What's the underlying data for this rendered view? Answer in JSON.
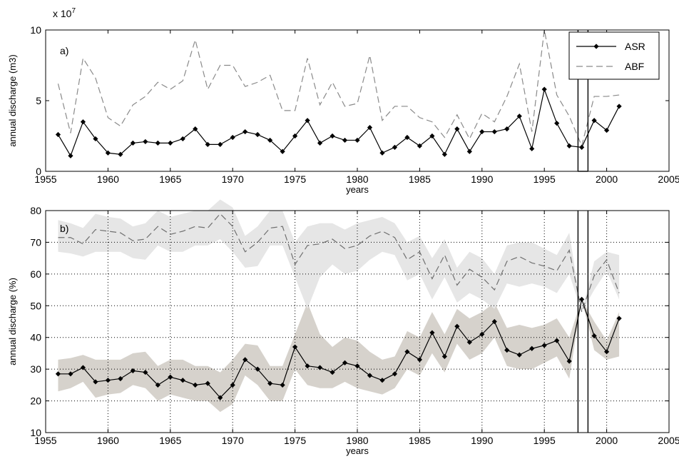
{
  "chart_data": [
    {
      "type": "line",
      "panel_label": "a)",
      "xlabel": "years",
      "ylabel": "annual discharge (m3)",
      "y_multiplier_label": "x 10",
      "y_multiplier_exponent": "7",
      "xlim": [
        1955,
        2005
      ],
      "ylim": [
        0,
        10
      ],
      "xticks": [
        1955,
        1960,
        1965,
        1970,
        1975,
        1980,
        1985,
        1990,
        1995,
        2000,
        2005
      ],
      "yticks": [
        0,
        5,
        10
      ],
      "grid": false,
      "legend_position": "top-right",
      "highlight_range": [
        1997.7,
        1998.5
      ],
      "x": [
        1956,
        1957,
        1958,
        1959,
        1960,
        1961,
        1962,
        1963,
        1964,
        1965,
        1966,
        1967,
        1968,
        1969,
        1970,
        1971,
        1972,
        1973,
        1974,
        1975,
        1976,
        1977,
        1978,
        1979,
        1980,
        1981,
        1982,
        1983,
        1984,
        1985,
        1986,
        1987,
        1988,
        1989,
        1990,
        1991,
        1992,
        1993,
        1994,
        1995,
        1996,
        1997,
        1998,
        1999,
        2000,
        2001
      ],
      "series": [
        {
          "name": "ASR",
          "color": "#000000",
          "style": "solid-diamond",
          "values": [
            2.6,
            1.1,
            3.5,
            2.3,
            1.3,
            1.2,
            2.0,
            2.1,
            2.0,
            2.0,
            2.3,
            3.0,
            1.9,
            1.9,
            2.4,
            2.8,
            2.6,
            2.2,
            1.4,
            2.5,
            3.6,
            2.0,
            2.5,
            2.2,
            2.2,
            3.1,
            1.3,
            1.7,
            2.4,
            1.8,
            2.5,
            1.2,
            3.0,
            1.4,
            2.8,
            2.8,
            3.0,
            3.9,
            1.6,
            5.8,
            3.4,
            1.8,
            1.7,
            3.6,
            2.9,
            4.6
          ]
        },
        {
          "name": "ABF",
          "color": "#8a8a8a",
          "style": "dashed",
          "values": [
            6.2,
            2.7,
            8.0,
            6.6,
            3.8,
            3.2,
            4.7,
            5.3,
            6.3,
            5.8,
            6.4,
            9.3,
            5.8,
            7.5,
            7.5,
            6.0,
            6.3,
            6.8,
            4.3,
            4.3,
            8.0,
            4.7,
            6.3,
            4.6,
            4.8,
            8.2,
            3.6,
            4.6,
            4.6,
            3.8,
            3.5,
            2.4,
            4.0,
            2.3,
            4.1,
            3.5,
            5.3,
            7.6,
            2.8,
            10.0,
            5.4,
            3.9,
            1.8,
            5.3,
            5.3,
            5.4
          ]
        }
      ]
    },
    {
      "type": "line",
      "panel_label": "b)",
      "xlabel": "years",
      "ylabel": "annual discharge (%)",
      "xlim": [
        1955,
        2005
      ],
      "ylim": [
        10,
        80
      ],
      "xticks": [
        1955,
        1960,
        1965,
        1970,
        1975,
        1980,
        1985,
        1990,
        1995,
        2000,
        2005
      ],
      "yticks": [
        10,
        20,
        30,
        40,
        50,
        60,
        70,
        80
      ],
      "grid": true,
      "highlight_range": [
        1997.7,
        1998.5
      ],
      "x": [
        1956,
        1957,
        1958,
        1959,
        1960,
        1961,
        1962,
        1963,
        1964,
        1965,
        1966,
        1967,
        1968,
        1969,
        1970,
        1971,
        1972,
        1973,
        1974,
        1975,
        1976,
        1977,
        1978,
        1979,
        1980,
        1981,
        1982,
        1983,
        1984,
        1985,
        1986,
        1987,
        1988,
        1989,
        1990,
        1991,
        1992,
        1993,
        1994,
        1995,
        1996,
        1997,
        1998,
        1999,
        2000,
        2001
      ],
      "series": [
        {
          "name": "ASR",
          "color": "#000000",
          "style": "solid-diamond",
          "values": [
            28.5,
            28.5,
            30.5,
            26,
            26.5,
            27,
            29.5,
            29,
            25,
            27.5,
            26.5,
            25,
            25.5,
            21,
            25,
            33,
            30,
            25.5,
            25,
            37,
            31,
            30.5,
            29,
            32,
            31,
            28,
            26.5,
            28.5,
            35.5,
            33,
            41.5,
            34,
            43.5,
            38.5,
            41,
            45,
            36,
            34.5,
            36.5,
            37.5,
            39,
            32.5,
            52,
            40.5,
            35.5,
            46
          ],
          "band_color": "#d6d2cc",
          "band_upper": [
            33,
            33.5,
            34.5,
            33,
            33,
            33,
            35,
            35.5,
            31,
            33,
            33,
            31,
            31,
            29,
            33,
            38,
            37.5,
            31,
            31,
            41,
            51,
            41,
            37,
            40,
            39,
            35.5,
            33,
            34,
            42,
            40,
            48,
            41,
            49,
            46,
            48,
            51,
            43,
            44,
            43,
            44,
            46,
            40,
            52,
            45,
            39,
            48
          ],
          "band_lower": [
            23,
            24,
            26,
            21,
            22,
            22.5,
            25,
            24,
            20,
            22,
            21,
            20,
            20,
            16.5,
            19,
            28,
            25,
            20,
            20,
            30,
            25,
            24,
            24,
            26,
            24,
            23,
            22,
            24,
            30,
            28,
            35,
            29,
            38,
            33,
            35,
            40,
            31,
            30,
            30,
            32,
            34,
            27,
            52,
            36,
            33,
            34
          ]
        },
        {
          "name": "ABF",
          "color": "#707070",
          "style": "dashed",
          "values": [
            71.5,
            71.5,
            69.5,
            74,
            73.5,
            73,
            70.5,
            71,
            75,
            72.5,
            73.5,
            75,
            74.5,
            79,
            75,
            67,
            70,
            74.5,
            75,
            63,
            69,
            69.5,
            71,
            68,
            69,
            72,
            73.5,
            71.5,
            64.5,
            67,
            58.5,
            66,
            56.5,
            61.5,
            59,
            55,
            64,
            65.5,
            63.5,
            62.5,
            61,
            67.5,
            48,
            59.5,
            64.5,
            54
          ],
          "band_color": "#e6e6e6",
          "band_upper": [
            77,
            76,
            74.5,
            79,
            78,
            77.5,
            75,
            76,
            80,
            78,
            79,
            80,
            80,
            83.5,
            81,
            72,
            75,
            80,
            80,
            70,
            75,
            76,
            76,
            74,
            76,
            77,
            78,
            76,
            70,
            72,
            65,
            71,
            62,
            67,
            65,
            60,
            69,
            70,
            70,
            68,
            66,
            73,
            48,
            64,
            67,
            66
          ],
          "band_lower": [
            67,
            66.5,
            65.5,
            67,
            67,
            67,
            65,
            64.5,
            69,
            67,
            67,
            69,
            69,
            71,
            67,
            62,
            62.5,
            69,
            69,
            59,
            49,
            59,
            63,
            60,
            61,
            64.5,
            67,
            66,
            58,
            60,
            52,
            59,
            51,
            54,
            52,
            49,
            57,
            56,
            57,
            56,
            54,
            60,
            48,
            55,
            61,
            52
          ]
        }
      ]
    }
  ]
}
